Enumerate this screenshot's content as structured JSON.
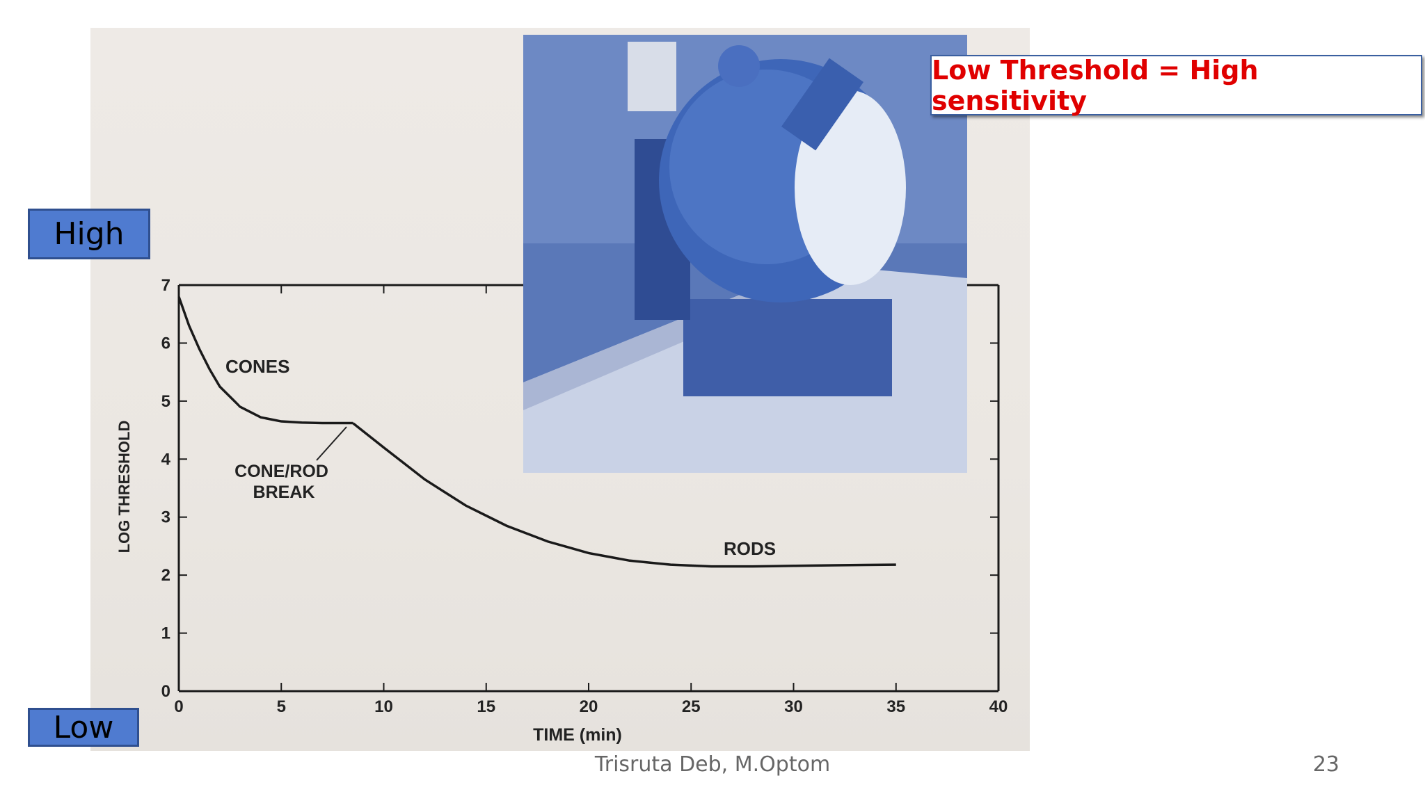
{
  "slide": {
    "callout": "Low Threshold = High sensitivity",
    "high_label": "High",
    "low_label": "Low",
    "footer_author": "Trisruta Deb, M.Optom",
    "page_number": "23"
  },
  "colors": {
    "callout_text": "#e00000",
    "tag_fill": "#4f7bd0",
    "curve": "#1a1a1a",
    "photo_blue": "#4f6fb2"
  },
  "chart_data": {
    "type": "line",
    "xlabel": "TIME (min)",
    "ylabel": "LOG THRESHOLD",
    "xlim": [
      0,
      40
    ],
    "ylim": [
      0,
      7
    ],
    "xticks": [
      0,
      5,
      10,
      15,
      20,
      25,
      30,
      35,
      40
    ],
    "yticks": [
      0,
      1,
      2,
      3,
      4,
      5,
      6,
      7
    ],
    "series": [
      {
        "name": "CONES",
        "x": [
          0,
          0.5,
          1,
          1.5,
          2,
          3,
          4,
          5,
          6,
          7,
          8,
          8.5
        ],
        "y": [
          6.8,
          6.3,
          5.9,
          5.55,
          5.25,
          4.9,
          4.72,
          4.65,
          4.63,
          4.62,
          4.62,
          4.62
        ]
      },
      {
        "name": "RODS",
        "x": [
          8.5,
          10,
          12,
          14,
          16,
          18,
          20,
          22,
          24,
          26,
          28,
          30,
          32,
          35
        ],
        "y": [
          4.62,
          4.2,
          3.65,
          3.2,
          2.85,
          2.58,
          2.38,
          2.25,
          2.18,
          2.15,
          2.15,
          2.16,
          2.17,
          2.18
        ]
      }
    ],
    "annotations": [
      "CONES",
      "CONE/ROD BREAK",
      "RODS"
    ]
  }
}
